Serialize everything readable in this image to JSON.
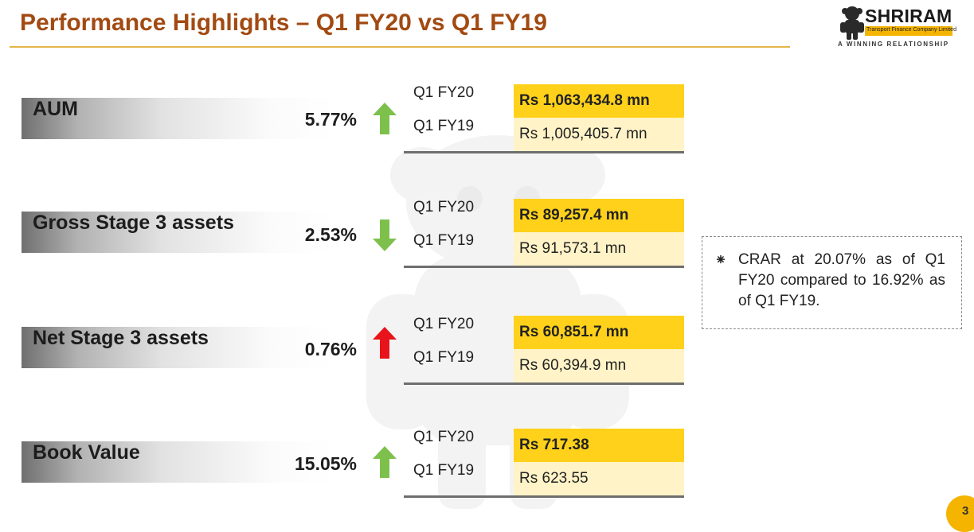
{
  "slide": {
    "title": "Performance Highlights – Q1 FY20 vs Q1 FY19",
    "page_number": "3",
    "colors": {
      "title": "#a24a12",
      "accent_yellow": "#ffd11a",
      "light_yellow": "#fff3c7",
      "arrow_up": "#7dc14c",
      "arrow_alert": "#e8141b"
    }
  },
  "logo": {
    "name": "SHRIRAM",
    "subtitle": "Transport Finance Company Limited",
    "tagline": "A WINNING RELATIONSHIP"
  },
  "metrics": [
    {
      "label": "AUM",
      "change": "5.77%",
      "arrow": "up-green",
      "current": {
        "period": "Q1 FY20",
        "value": "Rs 1,063,434.8 mn"
      },
      "previous": {
        "period": "Q1 FY19",
        "value": "Rs 1,005,405.7 mn"
      }
    },
    {
      "label": "Gross Stage 3 assets",
      "change": "2.53%",
      "arrow": "down-green",
      "current": {
        "period": "Q1 FY20",
        "value": "Rs 89,257.4 mn"
      },
      "previous": {
        "period": "Q1 FY19",
        "value": "Rs 91,573.1 mn"
      }
    },
    {
      "label": "Net Stage 3 assets",
      "change": "0.76%",
      "arrow": "up-red",
      "current": {
        "period": "Q1 FY20",
        "value": "Rs 60,851.7 mn"
      },
      "previous": {
        "period": "Q1 FY19",
        "value": "Rs 60,394.9 mn"
      }
    },
    {
      "label": "Book Value",
      "change": "15.05%",
      "arrow": "up-green",
      "current": {
        "period": "Q1 FY20",
        "value": "Rs 717.38"
      },
      "previous": {
        "period": "Q1 FY19",
        "value": "Rs 623.55"
      }
    }
  ],
  "note": {
    "bullet": "⁕",
    "text": "CRAR at 20.07% as of Q1 FY20 compared to 16.92% as of Q1 FY19."
  }
}
